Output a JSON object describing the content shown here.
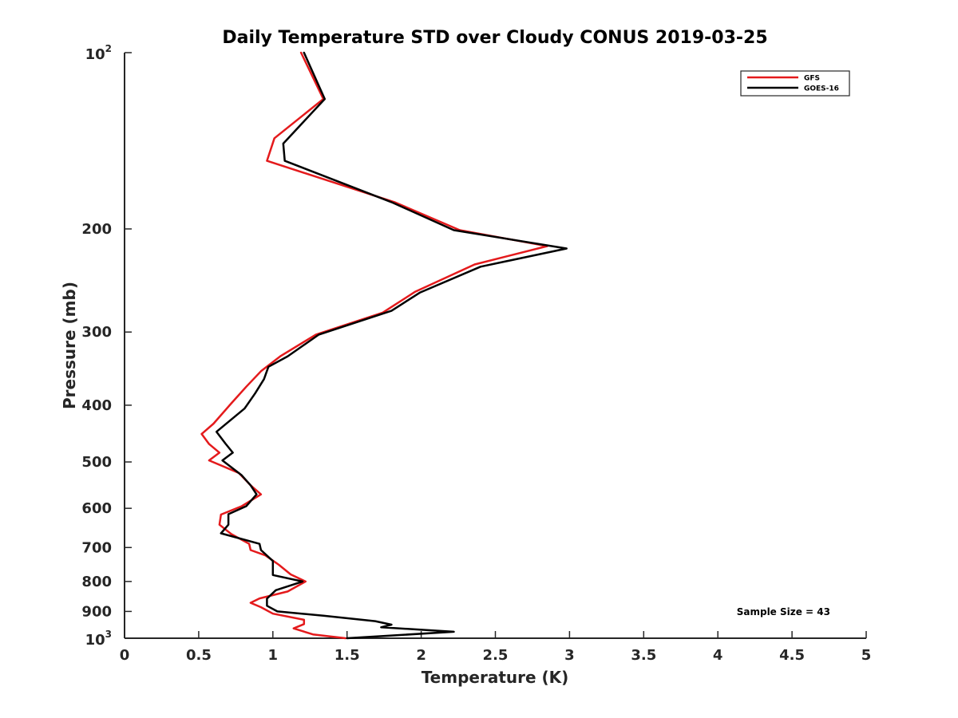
{
  "chart_data": {
    "type": "line",
    "title": "Daily Temperature STD over Cloudy CONUS 2019-03-25",
    "xlabel": "Temperature (K)",
    "ylabel": "Pressure (mb)",
    "xlim": [
      0,
      5
    ],
    "ylim": [
      100,
      1000
    ],
    "y_scale": "log",
    "y_reversed": true,
    "grid": false,
    "legend_position": "top-right",
    "x_ticks": [
      0,
      0.5,
      1,
      1.5,
      2,
      2.5,
      3,
      3.5,
      4,
      4.5,
      5
    ],
    "x_tick_labels": [
      "0",
      "0.5",
      "1",
      "1.5",
      "2",
      "2.5",
      "3",
      "3.5",
      "4",
      "4.5",
      "5"
    ],
    "y_ticks": [
      200,
      300,
      400,
      500,
      600,
      700,
      800,
      900
    ],
    "y_tick_labels": [
      "200",
      "300",
      "400",
      "500",
      "600",
      "700",
      "800",
      "900"
    ],
    "y_tick_power_labels": [
      {
        "value": 100,
        "base": "10",
        "exp": "2"
      },
      {
        "value": 1000,
        "base": "10",
        "exp": "3"
      }
    ],
    "annotation": "Sample Size = 43",
    "series": [
      {
        "name": "GFS",
        "color": "#e41a1c",
        "points": [
          [
            1.19,
            100
          ],
          [
            1.34,
            120
          ],
          [
            1.01,
            140
          ],
          [
            0.96,
            153
          ],
          [
            1.82,
            180
          ],
          [
            2.26,
            201
          ],
          [
            2.85,
            214
          ],
          [
            2.36,
            230
          ],
          [
            1.96,
            256
          ],
          [
            1.74,
            278
          ],
          [
            1.29,
            303
          ],
          [
            1.05,
            330
          ],
          [
            0.92,
            350
          ],
          [
            0.82,
            372
          ],
          [
            0.72,
            397
          ],
          [
            0.6,
            430
          ],
          [
            0.52,
            448
          ],
          [
            0.57,
            466
          ],
          [
            0.64,
            482
          ],
          [
            0.57,
            497
          ],
          [
            0.77,
            522
          ],
          [
            0.85,
            548
          ],
          [
            0.92,
            568
          ],
          [
            0.79,
            595
          ],
          [
            0.65,
            615
          ],
          [
            0.64,
            640
          ],
          [
            0.72,
            664
          ],
          [
            0.84,
            690
          ],
          [
            0.85,
            707
          ],
          [
            0.95,
            722
          ],
          [
            1.04,
            749
          ],
          [
            1.12,
            778
          ],
          [
            1.22,
            800
          ],
          [
            1.1,
            832
          ],
          [
            0.91,
            855
          ],
          [
            0.85,
            870
          ],
          [
            0.92,
            885
          ],
          [
            1.0,
            908
          ],
          [
            1.21,
            930
          ],
          [
            1.21,
            946
          ],
          [
            1.14,
            962
          ],
          [
            1.27,
            985
          ],
          [
            1.49,
            1000
          ]
        ]
      },
      {
        "name": "GOES-16",
        "color": "#000000",
        "points": [
          [
            1.21,
            100
          ],
          [
            1.35,
            120
          ],
          [
            1.07,
            143
          ],
          [
            1.08,
            153
          ],
          [
            1.8,
            180
          ],
          [
            2.22,
            201
          ],
          [
            2.98,
            216
          ],
          [
            2.4,
            232
          ],
          [
            1.99,
            257
          ],
          [
            1.8,
            276
          ],
          [
            1.31,
            303
          ],
          [
            1.1,
            330
          ],
          [
            0.97,
            344
          ],
          [
            0.94,
            361
          ],
          [
            0.88,
            382
          ],
          [
            0.81,
            405
          ],
          [
            0.62,
            444
          ],
          [
            0.68,
            465
          ],
          [
            0.73,
            482
          ],
          [
            0.66,
            497
          ],
          [
            0.79,
            527
          ],
          [
            0.85,
            548
          ],
          [
            0.89,
            568
          ],
          [
            0.82,
            595
          ],
          [
            0.7,
            614
          ],
          [
            0.7,
            640
          ],
          [
            0.65,
            662
          ],
          [
            0.91,
            690
          ],
          [
            0.92,
            707
          ],
          [
            1.0,
            738
          ],
          [
            1.0,
            780
          ],
          [
            1.2,
            800
          ],
          [
            1.02,
            828
          ],
          [
            0.96,
            856
          ],
          [
            0.96,
            880
          ],
          [
            1.03,
            900
          ],
          [
            1.34,
            915
          ],
          [
            1.69,
            935
          ],
          [
            1.8,
            948
          ],
          [
            1.73,
            958
          ],
          [
            2.22,
            975
          ],
          [
            1.5,
            1000
          ]
        ]
      }
    ]
  }
}
